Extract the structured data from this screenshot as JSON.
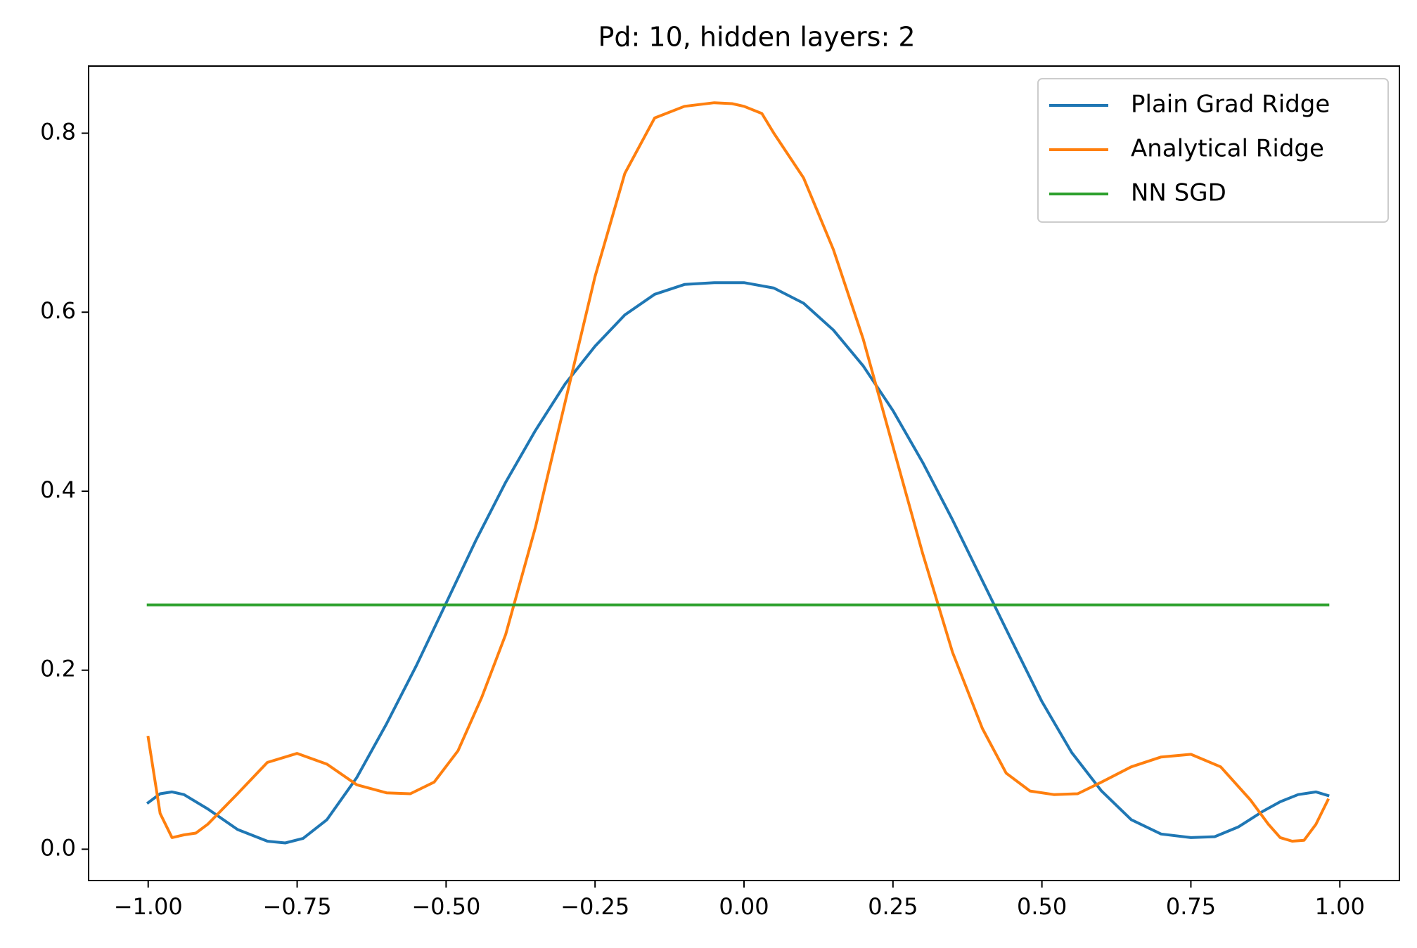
{
  "chart_data": {
    "type": "line",
    "title": "Pd: 10, hidden layers: 2",
    "xlabel": "",
    "ylabel": "",
    "xlim": [
      -1.1,
      1.1
    ],
    "ylim": [
      -0.035,
      0.875
    ],
    "xticks": [
      -1.0,
      -0.75,
      -0.5,
      -0.25,
      0.0,
      0.25,
      0.5,
      0.75,
      1.0
    ],
    "xtick_labels": [
      "−1.00",
      "−0.75",
      "−0.50",
      "−0.25",
      "0.00",
      "0.25",
      "0.50",
      "0.75",
      "1.00"
    ],
    "yticks": [
      0.0,
      0.2,
      0.4,
      0.6,
      0.8
    ],
    "ytick_labels": [
      "0.0",
      "0.2",
      "0.4",
      "0.6",
      "0.8"
    ],
    "grid": false,
    "legend_position": "top-right",
    "series": [
      {
        "name": "Plain Grad Ridge",
        "color": "#1f77b4",
        "x": [
          -1.0,
          -0.98,
          -0.96,
          -0.94,
          -0.9,
          -0.85,
          -0.8,
          -0.77,
          -0.74,
          -0.7,
          -0.65,
          -0.6,
          -0.55,
          -0.5,
          -0.45,
          -0.4,
          -0.35,
          -0.3,
          -0.25,
          -0.2,
          -0.15,
          -0.1,
          -0.05,
          0.0,
          0.05,
          0.1,
          0.15,
          0.2,
          0.25,
          0.3,
          0.35,
          0.4,
          0.45,
          0.5,
          0.55,
          0.6,
          0.65,
          0.7,
          0.75,
          0.79,
          0.83,
          0.87,
          0.9,
          0.93,
          0.96,
          0.98
        ],
        "y": [
          0.052,
          0.062,
          0.064,
          0.061,
          0.045,
          0.022,
          0.009,
          0.007,
          0.012,
          0.033,
          0.08,
          0.14,
          0.205,
          0.275,
          0.345,
          0.41,
          0.468,
          0.52,
          0.562,
          0.597,
          0.62,
          0.631,
          0.633,
          0.633,
          0.627,
          0.61,
          0.58,
          0.54,
          0.49,
          0.432,
          0.368,
          0.3,
          0.232,
          0.165,
          0.108,
          0.065,
          0.033,
          0.017,
          0.013,
          0.014,
          0.025,
          0.042,
          0.053,
          0.061,
          0.064,
          0.06
        ]
      },
      {
        "name": "Analytical Ridge",
        "color": "#ff7f0e",
        "x": [
          -1.0,
          -0.98,
          -0.96,
          -0.94,
          -0.92,
          -0.9,
          -0.85,
          -0.8,
          -0.75,
          -0.7,
          -0.65,
          -0.6,
          -0.56,
          -0.52,
          -0.48,
          -0.44,
          -0.4,
          -0.35,
          -0.3,
          -0.25,
          -0.2,
          -0.15,
          -0.1,
          -0.05,
          -0.02,
          0.0,
          0.03,
          0.05,
          0.1,
          0.15,
          0.2,
          0.25,
          0.3,
          0.35,
          0.4,
          0.44,
          0.48,
          0.52,
          0.56,
          0.6,
          0.65,
          0.7,
          0.75,
          0.8,
          0.85,
          0.88,
          0.9,
          0.92,
          0.94,
          0.96,
          0.98
        ],
        "y": [
          0.125,
          0.04,
          0.013,
          0.016,
          0.018,
          0.028,
          0.062,
          0.097,
          0.107,
          0.095,
          0.072,
          0.063,
          0.062,
          0.075,
          0.11,
          0.17,
          0.24,
          0.36,
          0.5,
          0.64,
          0.755,
          0.817,
          0.83,
          0.834,
          0.833,
          0.83,
          0.822,
          0.8,
          0.75,
          0.67,
          0.57,
          0.45,
          0.33,
          0.22,
          0.135,
          0.085,
          0.065,
          0.061,
          0.062,
          0.075,
          0.092,
          0.103,
          0.106,
          0.092,
          0.055,
          0.028,
          0.013,
          0.009,
          0.01,
          0.028,
          0.055
        ]
      },
      {
        "name": "NN SGD",
        "color": "#2ca02c",
        "x": [
          -1.0,
          0.98
        ],
        "y": [
          0.273,
          0.273
        ]
      }
    ]
  }
}
